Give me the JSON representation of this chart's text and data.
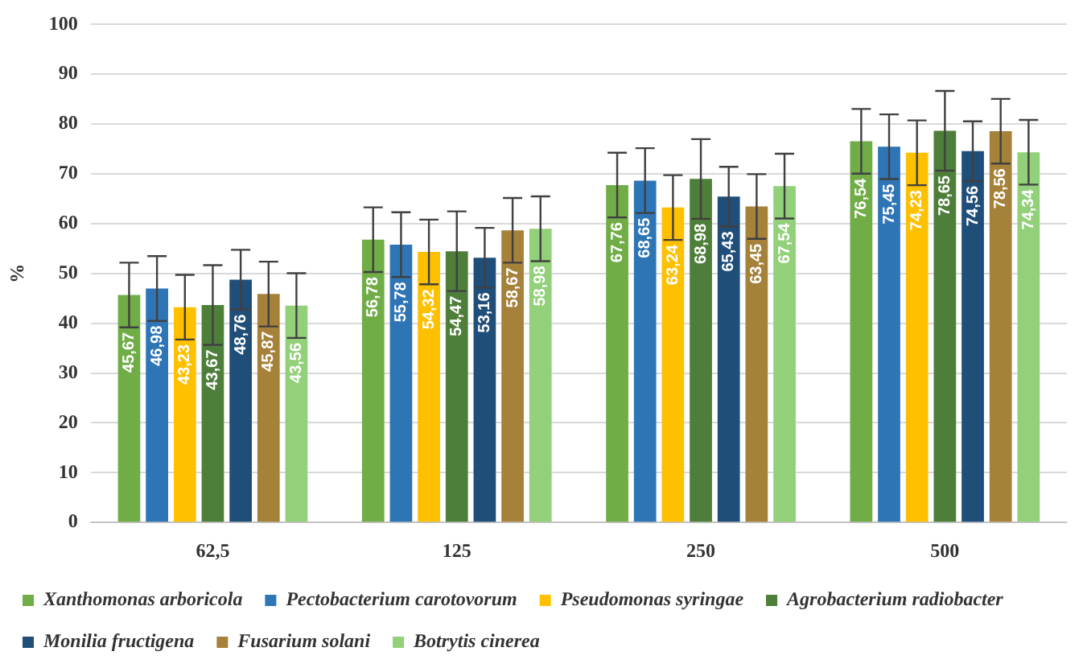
{
  "chart_data": {
    "type": "bar",
    "ylabel": "%",
    "categories": [
      "62,5",
      "125",
      "250",
      "500"
    ],
    "series": [
      {
        "name": "Xanthomonas arboricola",
        "color": "#70ad47",
        "values": [
          45.67,
          56.78,
          67.76,
          76.54
        ],
        "value_labels": [
          "45,67",
          "56,78",
          "67,76",
          "76,54"
        ],
        "errors": [
          6.5,
          6.5,
          6.5,
          6.5
        ]
      },
      {
        "name": "Pectobacterium carotovorum",
        "color": "#2e75b6",
        "values": [
          46.98,
          55.78,
          68.65,
          75.45
        ],
        "value_labels": [
          "46,98",
          "55,78",
          "68,65",
          "75,45"
        ],
        "errors": [
          6.5,
          6.5,
          6.5,
          6.5
        ]
      },
      {
        "name": "Pseudomonas syringae",
        "color": "#ffc000",
        "values": [
          43.23,
          54.32,
          63.24,
          74.23
        ],
        "value_labels": [
          "43,23",
          "54,32",
          "63,24",
          "74,23"
        ],
        "errors": [
          6.5,
          6.5,
          6.5,
          6.5
        ]
      },
      {
        "name": "Agrobacterium radiobacter",
        "color": "#4e7f3a",
        "values": [
          43.67,
          54.47,
          68.98,
          78.65
        ],
        "value_labels": [
          "43,67",
          "54,47",
          "68,98",
          "78,65"
        ],
        "errors": [
          8,
          8,
          8,
          8
        ]
      },
      {
        "name": "Monilia fructigena",
        "color": "#1f4e79",
        "values": [
          48.76,
          53.16,
          65.43,
          74.56
        ],
        "value_labels": [
          "48,76",
          "53,16",
          "65,43",
          "74,56"
        ],
        "errors": [
          6,
          6,
          6,
          6
        ]
      },
      {
        "name": "Fusarium solani",
        "color": "#a5813a",
        "values": [
          45.87,
          58.67,
          63.45,
          78.56
        ],
        "value_labels": [
          "45,87",
          "58,67",
          "63,45",
          "78,56"
        ],
        "errors": [
          6.5,
          6.5,
          6.5,
          6.5
        ]
      },
      {
        "name": "Botrytis cinerea",
        "color": "#92d07a",
        "values": [
          43.56,
          58.98,
          67.54,
          74.34
        ],
        "value_labels": [
          "43,56",
          "58,98",
          "67,54",
          "74,34"
        ],
        "errors": [
          6.5,
          6.5,
          6.5,
          6.5
        ]
      }
    ],
    "ylim": [
      0,
      100
    ],
    "yticks": [
      0,
      10,
      20,
      30,
      40,
      50,
      60,
      70,
      80,
      90,
      100
    ],
    "grid": "y",
    "legend": "bottom"
  }
}
